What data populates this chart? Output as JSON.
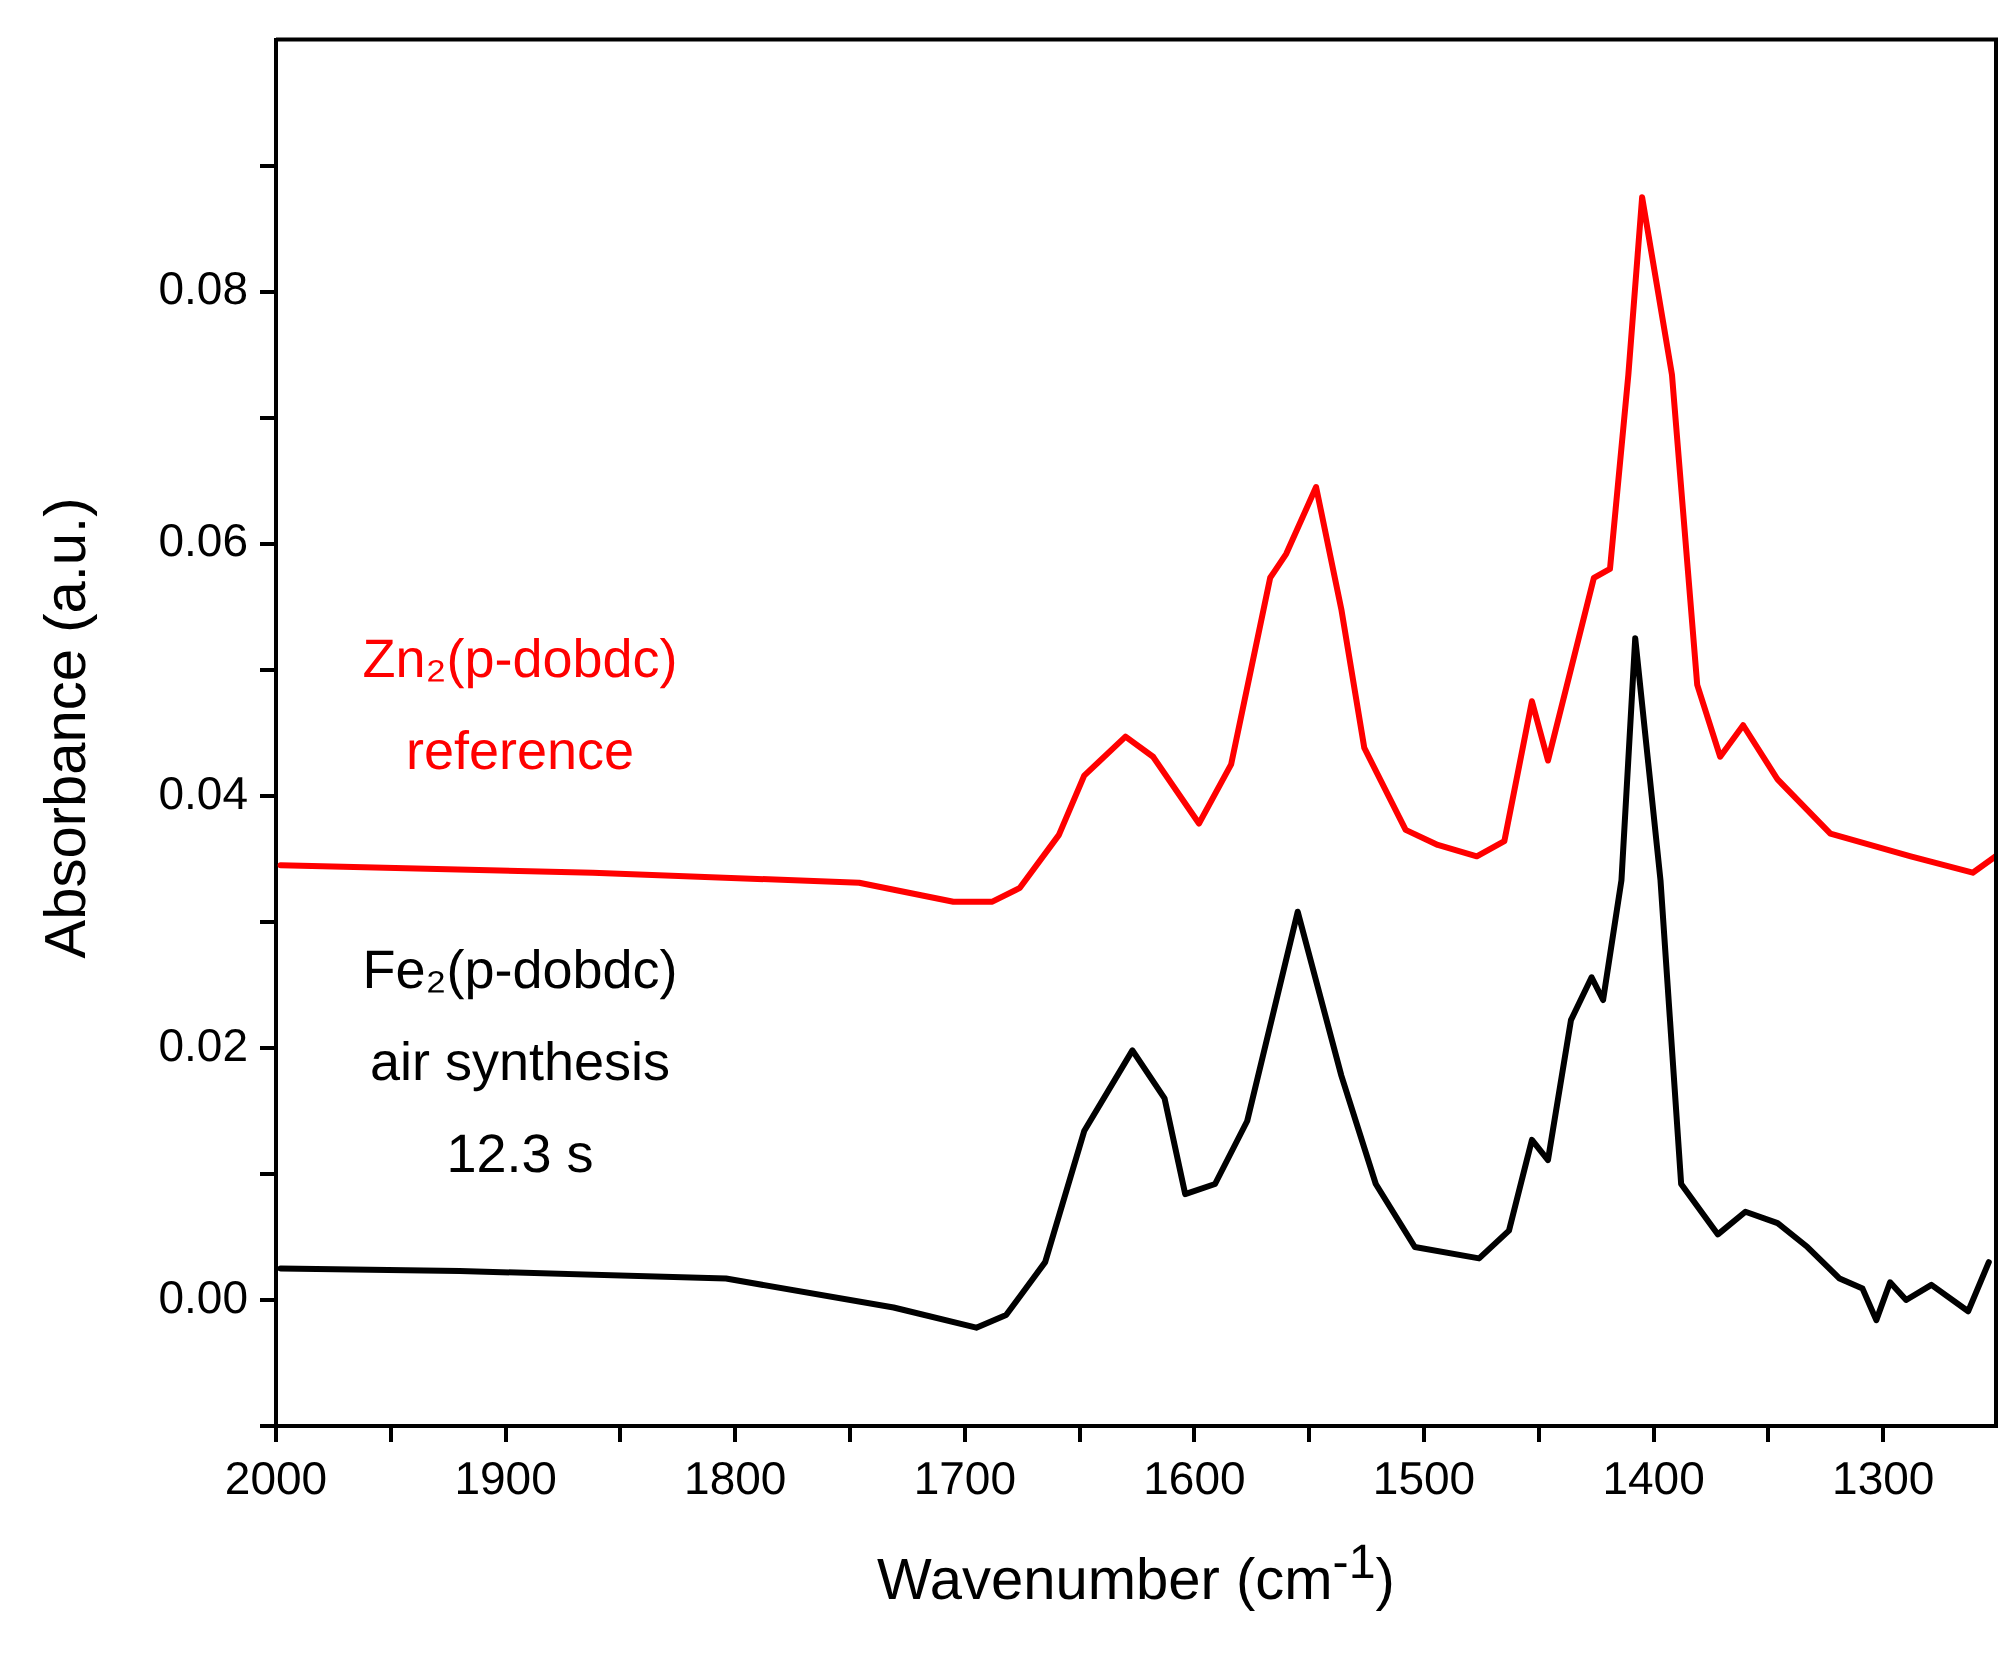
{
  "chart_data": {
    "type": "line",
    "xlabel": "Wavenumber (cm$^{-1}$)",
    "ylabel": "Absorbance (a.u.)",
    "xlim": [
      2000,
      1250
    ],
    "ylim": [
      -0.01,
      0.1
    ],
    "xticks": [
      2000,
      {
        "value": 1950,
        "label": null
      },
      1900,
      {
        "value": 1850,
        "label": null
      },
      1800,
      {
        "value": 1750,
        "label": null
      },
      1700,
      {
        "value": 1650,
        "label": null
      },
      1600,
      {
        "value": 1550,
        "label": null
      },
      1500,
      {
        "value": 1450,
        "label": null
      },
      1400,
      {
        "value": 1350,
        "label": null
      },
      1300
    ],
    "yticks": [
      {
        "value": -0.01,
        "label": null
      },
      {
        "value": 0,
        "label": "0.00"
      },
      {
        "value": 0.01,
        "label": null
      },
      {
        "value": 0.02,
        "label": "0.02"
      },
      {
        "value": 0.03,
        "label": null
      },
      {
        "value": 0.04,
        "label": "0.04"
      },
      {
        "value": 0.05,
        "label": null
      },
      {
        "value": 0.06,
        "label": "0.06"
      },
      {
        "value": 0.07,
        "label": null
      },
      {
        "value": 0.08,
        "label": "0.08"
      },
      {
        "value": 0.09,
        "label": null
      }
    ],
    "grid": false,
    "legend": false,
    "marker": "none",
    "line_style": "solid",
    "series": [
      {
        "name": "Zn₂(p-dobdc)\nreference",
        "color": "#ff0000",
        "x": [
          1998,
          1862,
          1746,
          1705,
          1688,
          1676,
          1659,
          1648,
          1630,
          1618,
          1598,
          1584,
          1567,
          1560,
          1547,
          1536,
          1526,
          1508,
          1494,
          1477,
          1465,
          1453,
          1446,
          1426,
          1419,
          1411,
          1405,
          1392,
          1381,
          1371,
          1361,
          1346,
          1323,
          1288,
          1261,
          1251
        ],
        "values": [
          0.0345,
          0.0339,
          0.0331,
          0.0316,
          0.0316,
          0.0327,
          0.0369,
          0.0416,
          0.0447,
          0.0431,
          0.0378,
          0.0425,
          0.0573,
          0.0592,
          0.0645,
          0.0548,
          0.0438,
          0.0373,
          0.0361,
          0.0352,
          0.0364,
          0.0475,
          0.0428,
          0.0573,
          0.058,
          0.0734,
          0.0875,
          0.0734,
          0.0488,
          0.0431,
          0.0456,
          0.0413,
          0.037,
          0.0352,
          0.0339,
          0.0352
        ]
      },
      {
        "name": "Fe₂(p-dobdc)\nair synthesis\n12.3 s",
        "color": "#000000",
        "x": [
          1998,
          1920,
          1804,
          1731,
          1695,
          1682,
          1665,
          1648,
          1627,
          1613,
          1604,
          1591,
          1577,
          1555,
          1536,
          1521,
          1504,
          1476,
          1463,
          1453,
          1446,
          1436,
          1427,
          1422,
          1414,
          1408,
          1397,
          1388,
          1372,
          1360,
          1346,
          1333,
          1319,
          1309,
          1303,
          1297,
          1290,
          1279,
          1263,
          1254
        ],
        "values": [
          0.0025,
          0.0023,
          0.0017,
          -0.0006,
          -0.0022,
          -0.0012,
          0.003,
          0.0134,
          0.0198,
          0.016,
          0.0084,
          0.0092,
          0.0142,
          0.0308,
          0.0178,
          0.0092,
          0.0042,
          0.0033,
          0.0055,
          0.0127,
          0.0111,
          0.0222,
          0.0256,
          0.0238,
          0.0333,
          0.0525,
          0.0333,
          0.0092,
          0.0052,
          0.007,
          0.0061,
          0.0042,
          0.0017,
          0.0009,
          -0.0016,
          0.0014,
          0.0,
          0.0012,
          -0.0009,
          0.003
        ]
      }
    ]
  }
}
